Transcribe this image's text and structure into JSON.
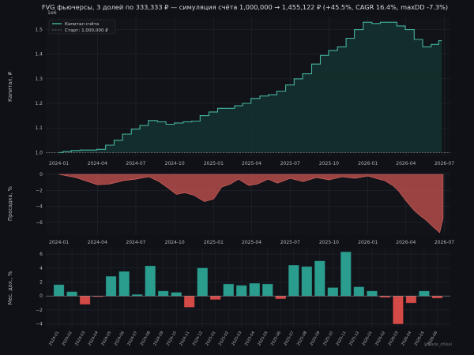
{
  "title": "FVG фьючерсы, 3 долей по 333,333 ₽ — симуляция счёта   1,000,000 → 1,455,122 ₽  (+45.5%, CAGR 16.4%, maxDD -7.3%)",
  "watermark": "@trade_ofskai",
  "colors": {
    "background": "#0f1116",
    "plot_background": "#111319",
    "equity_line": "#45b39d",
    "equity_fill": "#143230",
    "drawdown": "#c85450",
    "positive_bar": "#2a9d8f",
    "negative_bar": "#d44a47",
    "grid": "#262a33"
  },
  "chart_data": [
    {
      "type": "area",
      "name": "equity",
      "ylabel": "Капитал, ₽",
      "y_exponent_label": "1e6",
      "ylim": [
        0.985,
        1.55
      ],
      "yticks": [
        1.0,
        1.1,
        1.2,
        1.3,
        1.4,
        1.5
      ],
      "ytick_labels": [
        "1.0",
        "1.1",
        "1.2",
        "1.3",
        "1.4",
        "1.5"
      ],
      "xlim": [
        "2023-12-01",
        "2026-07-15"
      ],
      "xticks": [
        "2024-01-01",
        "2024-04-01",
        "2024-07-01",
        "2024-10-01",
        "2025-01-01",
        "2025-04-01",
        "2025-07-01",
        "2025-10-01",
        "2026-01-01",
        "2026-04-01",
        "2026-07-01"
      ],
      "xtick_labels": [
        "2024-01",
        "2024-04",
        "2024-07",
        "2024-10",
        "2025-01",
        "2025-04",
        "2025-07",
        "2025-10",
        "2026-01",
        "2026-04",
        "2026-07"
      ],
      "legend": {
        "position": "top-left",
        "entries": [
          "Капитал счёта",
          "Старт: 1,000,000 ₽"
        ]
      },
      "baseline": 1.0,
      "x": [
        "2024-01-01",
        "2024-01-20",
        "2024-02-10",
        "2024-03-01",
        "2024-03-20",
        "2024-04-10",
        "2024-05-01",
        "2024-05-20",
        "2024-06-10",
        "2024-07-01",
        "2024-07-20",
        "2024-08-10",
        "2024-09-01",
        "2024-09-20",
        "2024-10-10",
        "2024-11-01",
        "2024-11-20",
        "2024-12-10",
        "2025-01-01",
        "2025-01-20",
        "2025-02-10",
        "2025-03-01",
        "2025-03-20",
        "2025-04-10",
        "2025-05-01",
        "2025-05-20",
        "2025-06-10",
        "2025-07-01",
        "2025-07-20",
        "2025-08-10",
        "2025-09-01",
        "2025-09-20",
        "2025-10-10",
        "2025-11-01",
        "2025-11-20",
        "2025-12-10",
        "2026-01-01",
        "2026-01-20",
        "2026-02-10",
        "2026-03-01",
        "2026-03-20",
        "2026-04-10",
        "2026-05-01",
        "2026-05-20",
        "2026-06-10",
        "2026-06-25"
      ],
      "y": [
        1.0,
        1.004,
        1.008,
        1.01,
        1.01,
        1.013,
        1.03,
        1.05,
        1.075,
        1.095,
        1.11,
        1.13,
        1.125,
        1.115,
        1.12,
        1.125,
        1.128,
        1.15,
        1.165,
        1.18,
        1.18,
        1.19,
        1.2,
        1.22,
        1.23,
        1.235,
        1.25,
        1.275,
        1.3,
        1.32,
        1.36,
        1.395,
        1.415,
        1.43,
        1.465,
        1.5,
        1.53,
        1.525,
        1.53,
        1.53,
        1.515,
        1.5,
        1.46,
        1.43,
        1.44,
        1.455
      ]
    },
    {
      "type": "area",
      "name": "drawdown",
      "ylabel": "Просадка, %",
      "ylim": [
        -7.6,
        0.3
      ],
      "yticks": [
        0,
        -2,
        -4,
        -6
      ],
      "ytick_labels": [
        "0",
        "−2",
        "−4",
        "−6"
      ],
      "xlim": [
        "2023-12-01",
        "2026-07-15"
      ],
      "xticks": [
        "2024-01-01",
        "2024-04-01",
        "2024-07-01",
        "2024-10-01",
        "2025-01-01",
        "2025-04-01",
        "2025-07-01",
        "2025-10-01",
        "2026-01-01",
        "2026-04-01",
        "2026-07-01"
      ],
      "xtick_labels": [
        "2024-01",
        "2024-04",
        "2024-07",
        "2024-10",
        "2025-01",
        "2025-04",
        "2025-07",
        "2025-10",
        "2026-01",
        "2026-04",
        "2026-07"
      ],
      "x": [
        "2024-01-01",
        "2024-02-10",
        "2024-03-10",
        "2024-04-01",
        "2024-05-01",
        "2024-06-01",
        "2024-07-01",
        "2024-08-01",
        "2024-08-25",
        "2024-09-15",
        "2024-10-05",
        "2024-10-25",
        "2024-11-15",
        "2024-12-10",
        "2025-01-01",
        "2025-01-20",
        "2025-02-10",
        "2025-03-01",
        "2025-03-25",
        "2025-04-15",
        "2025-05-10",
        "2025-06-01",
        "2025-07-01",
        "2025-08-01",
        "2025-09-01",
        "2025-10-01",
        "2025-11-01",
        "2025-12-01",
        "2026-01-01",
        "2026-01-20",
        "2026-02-10",
        "2026-03-01",
        "2026-03-15",
        "2026-04-01",
        "2026-04-20",
        "2026-05-05",
        "2026-05-20",
        "2026-06-05",
        "2026-06-20",
        "2026-06-28"
      ],
      "y": [
        0,
        -0.4,
        -0.9,
        -1.3,
        -1.2,
        -0.8,
        -0.6,
        -0.3,
        -0.9,
        -1.7,
        -2.5,
        -2.3,
        -2.6,
        -3.4,
        -3.1,
        -1.6,
        -1.2,
        -0.6,
        -1.4,
        -1.2,
        -0.6,
        -1.1,
        -0.5,
        -0.9,
        -0.4,
        -0.7,
        -0.3,
        -0.5,
        -0.2,
        -0.5,
        -0.8,
        -1.4,
        -2.1,
        -3.3,
        -4.5,
        -5.2,
        -5.8,
        -6.6,
        -7.3,
        -5.5
      ]
    },
    {
      "type": "bar",
      "name": "monthly_returns",
      "ylabel": "Мес. дох., %",
      "ylim": [
        -4.5,
        6.8
      ],
      "yticks": [
        6,
        4,
        2,
        0,
        -2,
        -4
      ],
      "ytick_labels": [
        "6",
        "4",
        "2",
        "0",
        "−2",
        "−4"
      ],
      "categories": [
        "2024-01",
        "2024-02",
        "2024-03",
        "2024-04",
        "2024-05",
        "2024-06",
        "2024-07",
        "2024-08",
        "2024-09",
        "2024-10",
        "2024-11",
        "2024-12",
        "2025-01",
        "2025-02",
        "2025-03",
        "2025-04",
        "2025-05",
        "2025-06",
        "2025-07",
        "2025-08",
        "2025-09",
        "2025-10",
        "2025-11",
        "2025-12",
        "2026-01",
        "2026-02",
        "2026-03",
        "2026-04",
        "2026-05",
        "2026-06"
      ],
      "values": [
        1.6,
        0.6,
        -1.2,
        -0.1,
        2.8,
        3.5,
        0.2,
        4.3,
        0.7,
        0.5,
        -1.6,
        4.0,
        -0.5,
        1.7,
        1.5,
        1.8,
        1.7,
        -0.4,
        4.4,
        4.2,
        5.0,
        1.2,
        6.3,
        1.3,
        0.7,
        -0.2,
        -4.0,
        -1.0,
        0.7,
        -0.3
      ]
    }
  ]
}
